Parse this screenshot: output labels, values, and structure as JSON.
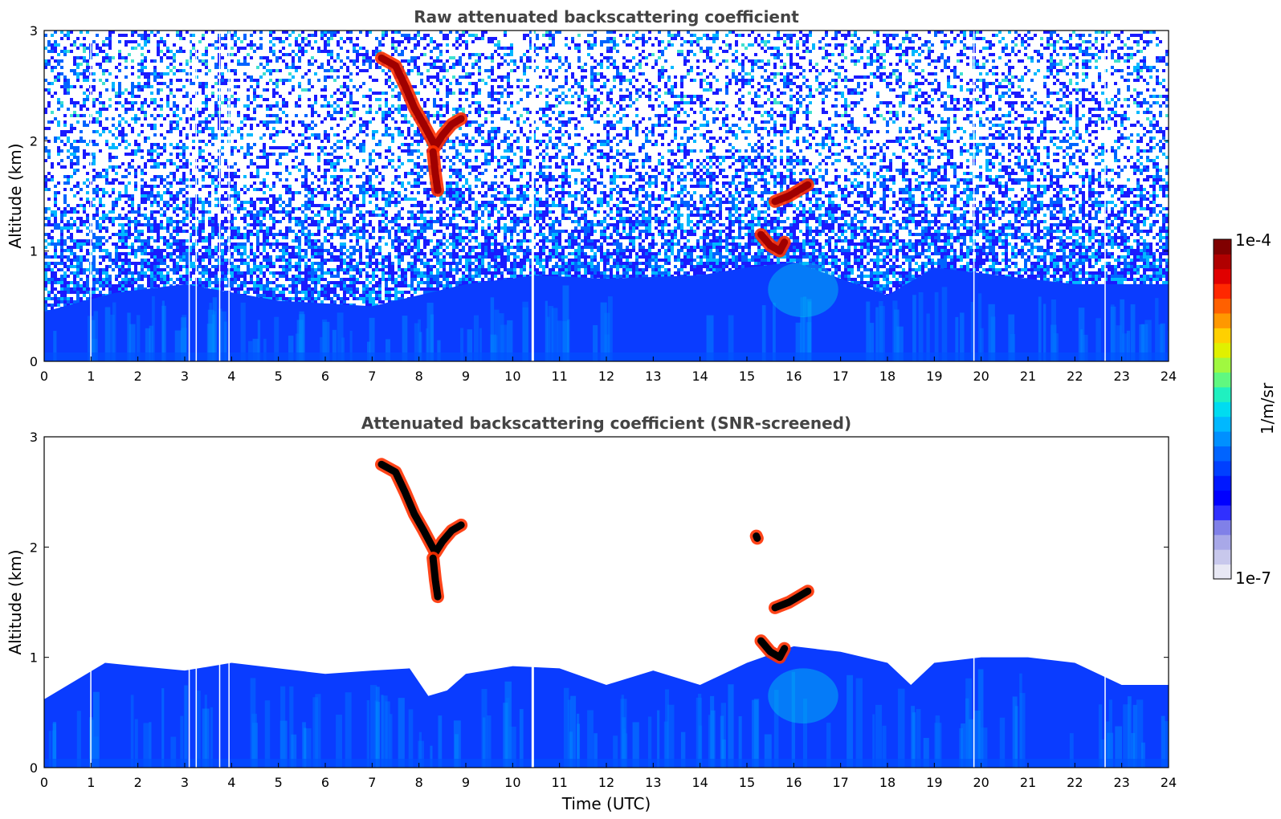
{
  "chart_data": [
    {
      "type": "heatmap",
      "title": "Raw attenuated backscattering coefficient",
      "xlabel": "",
      "ylabel": "Altitude (km)",
      "xlim": [
        0,
        24
      ],
      "ylim": [
        0,
        3
      ],
      "xticks": [
        "0",
        "1",
        "2",
        "3",
        "4",
        "5",
        "6",
        "7",
        "8",
        "9",
        "10",
        "11",
        "12",
        "13",
        "14",
        "15",
        "16",
        "17",
        "18",
        "19",
        "20",
        "21",
        "22",
        "23",
        "24"
      ],
      "yticks": [
        "0",
        "1",
        "2",
        "3"
      ],
      "background": "noisy",
      "boundary_layer_top_km": [
        [
          0,
          0.45
        ],
        [
          1.5,
          0.62
        ],
        [
          3,
          0.7
        ],
        [
          5,
          0.55
        ],
        [
          7,
          0.5
        ],
        [
          9,
          0.7
        ],
        [
          10.5,
          0.78
        ],
        [
          12,
          0.75
        ],
        [
          14,
          0.78
        ],
        [
          15,
          0.85
        ],
        [
          16,
          0.9
        ],
        [
          17,
          0.75
        ],
        [
          18,
          0.6
        ],
        [
          19,
          0.85
        ],
        [
          20,
          0.8
        ],
        [
          22,
          0.7
        ],
        [
          24,
          0.7
        ]
      ],
      "features": [
        {
          "kind": "cloud",
          "points": [
            [
              7.2,
              2.75
            ],
            [
              7.5,
              2.68
            ],
            [
              7.7,
              2.5
            ],
            [
              7.9,
              2.3
            ],
            [
              8.1,
              2.15
            ],
            [
              8.35,
              1.95
            ],
            [
              8.5,
              2.05
            ],
            [
              8.7,
              2.15
            ],
            [
              8.9,
              2.2
            ]
          ]
        },
        {
          "kind": "cloud",
          "points": [
            [
              8.3,
              1.9
            ],
            [
              8.35,
              1.7
            ],
            [
              8.4,
              1.55
            ]
          ]
        },
        {
          "kind": "cloud",
          "points": [
            [
              15.6,
              1.45
            ],
            [
              15.9,
              1.5
            ],
            [
              16.1,
              1.55
            ],
            [
              16.3,
              1.6
            ]
          ]
        },
        {
          "kind": "cloud",
          "points": [
            [
              15.3,
              1.15
            ],
            [
              15.5,
              1.05
            ],
            [
              15.7,
              1.0
            ],
            [
              15.8,
              1.08
            ]
          ]
        }
      ],
      "gaps_hours": [
        1.0,
        3.1,
        3.25,
        3.75,
        3.95,
        10.42,
        19.85,
        22.65
      ]
    },
    {
      "type": "heatmap",
      "title": "Attenuated backscattering coefficient (SNR-screened)",
      "xlabel": "Time (UTC)",
      "ylabel": "Altitude (km)",
      "xlim": [
        0,
        24
      ],
      "ylim": [
        0,
        3
      ],
      "xticks": [
        "0",
        "1",
        "2",
        "3",
        "4",
        "5",
        "6",
        "7",
        "8",
        "9",
        "10",
        "11",
        "12",
        "13",
        "14",
        "15",
        "16",
        "17",
        "18",
        "19",
        "20",
        "21",
        "22",
        "23",
        "24"
      ],
      "yticks": [
        "0",
        "1",
        "2",
        "3"
      ],
      "background": "screened",
      "boundary_layer_top_km": [
        [
          0,
          0.62
        ],
        [
          1.3,
          0.95
        ],
        [
          2,
          0.92
        ],
        [
          3,
          0.88
        ],
        [
          4,
          0.95
        ],
        [
          5,
          0.9
        ],
        [
          6,
          0.85
        ],
        [
          7,
          0.88
        ],
        [
          7.8,
          0.9
        ],
        [
          8.2,
          0.65
        ],
        [
          8.6,
          0.7
        ],
        [
          9,
          0.85
        ],
        [
          10,
          0.92
        ],
        [
          11,
          0.9
        ],
        [
          12,
          0.75
        ],
        [
          13,
          0.88
        ],
        [
          14,
          0.75
        ],
        [
          15,
          0.95
        ],
        [
          16,
          1.1
        ],
        [
          17,
          1.05
        ],
        [
          18,
          0.95
        ],
        [
          18.5,
          0.75
        ],
        [
          19,
          0.95
        ],
        [
          20,
          1.0
        ],
        [
          21,
          1.0
        ],
        [
          22,
          0.95
        ],
        [
          23,
          0.75
        ],
        [
          24,
          0.75
        ]
      ],
      "features": [
        {
          "kind": "cloud",
          "points": [
            [
              7.2,
              2.75
            ],
            [
              7.5,
              2.68
            ],
            [
              7.7,
              2.5
            ],
            [
              7.9,
              2.3
            ],
            [
              8.1,
              2.15
            ],
            [
              8.35,
              1.95
            ],
            [
              8.5,
              2.05
            ],
            [
              8.7,
              2.15
            ],
            [
              8.9,
              2.2
            ]
          ]
        },
        {
          "kind": "cloud",
          "points": [
            [
              8.3,
              1.9
            ],
            [
              8.35,
              1.7
            ],
            [
              8.4,
              1.55
            ]
          ]
        },
        {
          "kind": "cloud",
          "points": [
            [
              15.6,
              1.45
            ],
            [
              15.9,
              1.5
            ],
            [
              16.1,
              1.55
            ],
            [
              16.3,
              1.6
            ]
          ]
        },
        {
          "kind": "cloud",
          "points": [
            [
              15.3,
              1.15
            ],
            [
              15.5,
              1.05
            ],
            [
              15.7,
              1.0
            ],
            [
              15.8,
              1.08
            ]
          ]
        },
        {
          "kind": "cloud",
          "points": [
            [
              15.2,
              2.1
            ],
            [
              15.22,
              2.08
            ]
          ]
        }
      ],
      "gaps_hours": [
        1.0,
        3.1,
        3.25,
        3.75,
        3.95,
        10.42,
        19.85,
        22.65
      ]
    }
  ],
  "colorbar": {
    "max_label": "1e-4",
    "min_label": "1e-7",
    "unit_label": "1/m/sr",
    "colors": [
      "#e8e8f4",
      "#c8c8ec",
      "#a8a8e8",
      "#8080e8",
      "#3030ff",
      "#0000ff",
      "#0018ff",
      "#0040ff",
      "#0064ff",
      "#0090ff",
      "#00b8ff",
      "#00dcf0",
      "#20f0c0",
      "#60f880",
      "#a0f840",
      "#e0f000",
      "#ffd000",
      "#ff9800",
      "#ff6000",
      "#ff2800",
      "#e00000",
      "#b00000",
      "#800000"
    ]
  }
}
